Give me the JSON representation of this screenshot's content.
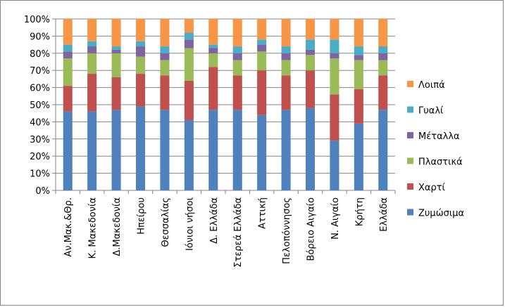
{
  "chart_data": {
    "type": "bar",
    "stacked": true,
    "percent": true,
    "title": "",
    "xlabel": "",
    "ylabel": "",
    "ylim": [
      0,
      100
    ],
    "yticks": [
      "0%",
      "10%",
      "20%",
      "30%",
      "40%",
      "50%",
      "60%",
      "70%",
      "80%",
      "90%",
      "100%"
    ],
    "grid": true,
    "legend_position": "right",
    "categories": [
      "Αν.Μακ.&Θρ.",
      "Κ. Μακεδονία",
      "Δ.Μακεδονία",
      "Ηπείρου",
      "Θεσσαλίας",
      "Ιόνιοι νήσοι",
      "Δ. Ελλάδα",
      "Στερεά Ελλάδα",
      "Αττική",
      "Πελοπόννησος",
      "Βόρειο Αιγαίο",
      "Ν. Αιγαίο",
      "Κρήτη",
      "Ελλάδα"
    ],
    "series": [
      {
        "name": "Ζυμώσιμα",
        "color": "#4f81bd",
        "values": [
          46,
          46,
          47,
          49,
          47,
          41,
          47,
          47,
          44,
          47,
          48,
          29,
          39,
          47
        ]
      },
      {
        "name": "Χαρτί",
        "color": "#c0504d",
        "values": [
          15,
          22,
          19,
          19,
          20,
          23,
          25,
          20,
          26,
          20,
          22,
          27,
          20,
          20
        ]
      },
      {
        "name": "Πλαστικά",
        "color": "#9bbb59",
        "values": [
          16,
          12,
          14,
          10,
          9,
          19,
          8,
          9,
          11,
          9,
          9,
          21,
          17,
          9
        ]
      },
      {
        "name": "Μέταλλα",
        "color": "#8064a2",
        "values": [
          4,
          4,
          2,
          6,
          4,
          5,
          3,
          4,
          4,
          4,
          3,
          3,
          3,
          4
        ]
      },
      {
        "name": "Γυαλί",
        "color": "#4bacc6",
        "values": [
          4,
          3,
          2,
          3,
          4,
          4,
          2,
          4,
          3,
          4,
          6,
          8,
          5,
          4
        ]
      },
      {
        "name": "Λοιπά",
        "color": "#f79646",
        "values": [
          15,
          13,
          16,
          13,
          16,
          8,
          15,
          16,
          12,
          16,
          12,
          12,
          16,
          16
        ]
      }
    ]
  }
}
